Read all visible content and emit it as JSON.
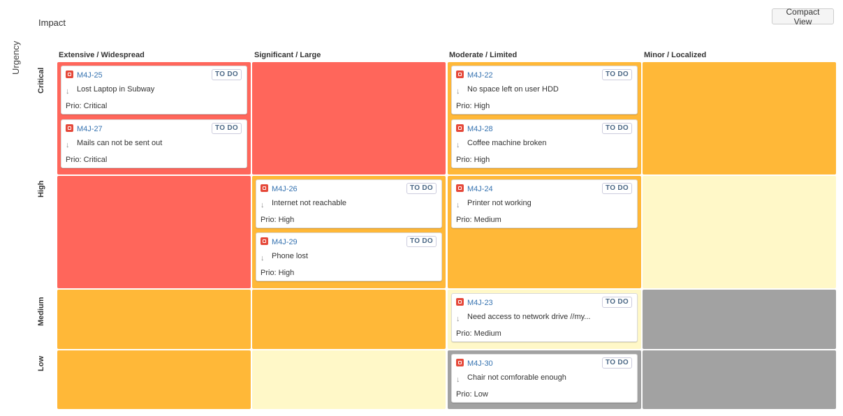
{
  "header": {
    "impact_label": "Impact",
    "urgency_label": "Urgency",
    "compact_view_label": "Compact View"
  },
  "columns": [
    "Extensive / Widespread",
    "Significant / Large",
    "Moderate / Limited",
    "Minor / Localized"
  ],
  "rows": [
    "Critical",
    "High",
    "Medium",
    "Low"
  ],
  "colors": {
    "red": "#ff665b",
    "orange": "#ffb838",
    "yellow": "#fff8c8",
    "grey": "#a2a2a2",
    "link": "#3572b0"
  },
  "cards": [
    {
      "key": "M4J-25",
      "status": "TO DO",
      "summary": "Lost Laptop in Subway",
      "prio": "Prio: Critical"
    },
    {
      "key": "M4J-27",
      "status": "TO DO",
      "summary": "Mails can not be sent out",
      "prio": "Prio: Critical"
    },
    {
      "key": "M4J-22",
      "status": "TO DO",
      "summary": "No space left on user HDD",
      "prio": "Prio: High"
    },
    {
      "key": "M4J-28",
      "status": "TO DO",
      "summary": "Coffee machine broken",
      "prio": "Prio: High"
    },
    {
      "key": "M4J-26",
      "status": "TO DO",
      "summary": "Internet not reachable",
      "prio": "Prio: High"
    },
    {
      "key": "M4J-29",
      "status": "TO DO",
      "summary": "Phone lost",
      "prio": "Prio: High"
    },
    {
      "key": "M4J-24",
      "status": "TO DO",
      "summary": "Printer not working",
      "prio": "Prio: Medium"
    },
    {
      "key": "M4J-23",
      "status": "TO DO",
      "summary": "Need access to network drive //my...",
      "prio": "Prio: Medium"
    },
    {
      "key": "M4J-30",
      "status": "TO DO",
      "summary": "Chair not comforable enough",
      "prio": "Prio: Low"
    }
  ]
}
